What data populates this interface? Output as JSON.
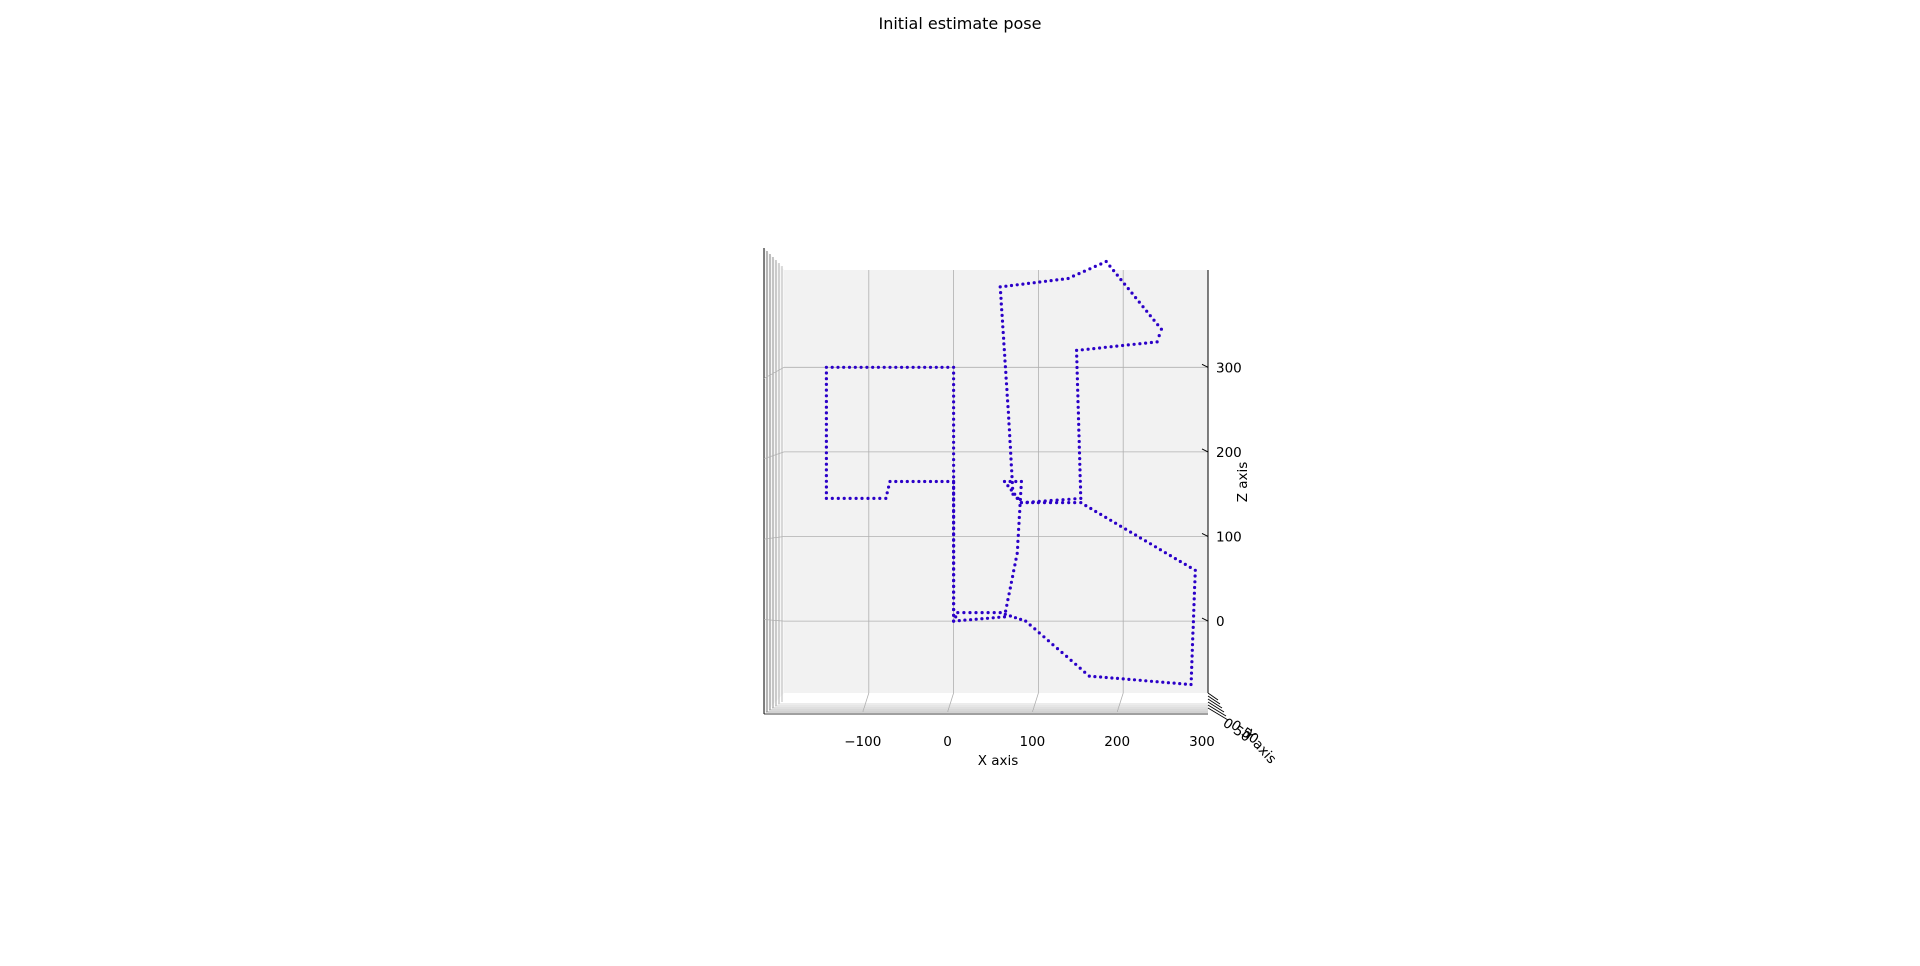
{
  "chart_data": {
    "type": "scatter",
    "title": "Initial estimate pose",
    "projection": "3d",
    "view": "elev 0, azim -90 (looking along Y axis)",
    "xlabel": "X axis",
    "ylabel": "Y axis",
    "zlabel": "Z axis",
    "xlim": [
      -200,
      300
    ],
    "zlim": [
      -85,
      415
    ],
    "xticks": [
      "−100",
      "0",
      "100",
      "200",
      "300"
    ],
    "zticks": [
      "0",
      "100",
      "200",
      "300"
    ],
    "ytick_labels_overlapping": "0 50",
    "grid": true,
    "point_color": "#2b00c8",
    "series": [
      {
        "vertices": [
          [
            0,
            0
          ],
          [
            0,
            300
          ],
          [
            -150,
            300
          ],
          [
            -150,
            145
          ],
          [
            -80,
            145
          ],
          [
            -75,
            165
          ],
          [
            0,
            165
          ],
          [
            0,
            0
          ],
          [
            60,
            5
          ],
          [
            75,
            80
          ],
          [
            80,
            165
          ],
          [
            60,
            165
          ],
          [
            80,
            140
          ],
          [
            150,
            145
          ],
          [
            145,
            320
          ],
          [
            240,
            330
          ],
          [
            245,
            345
          ],
          [
            180,
            425
          ],
          [
            135,
            405
          ],
          [
            55,
            395
          ],
          [
            65,
            240
          ],
          [
            70,
            150
          ],
          [
            80,
            140
          ],
          [
            100,
            140
          ],
          [
            150,
            140
          ],
          [
            285,
            60
          ],
          [
            280,
            -75
          ],
          [
            160,
            -65
          ],
          [
            85,
            0
          ],
          [
            55,
            10
          ],
          [
            5,
            10
          ],
          [
            0,
            0
          ]
        ]
      }
    ]
  }
}
